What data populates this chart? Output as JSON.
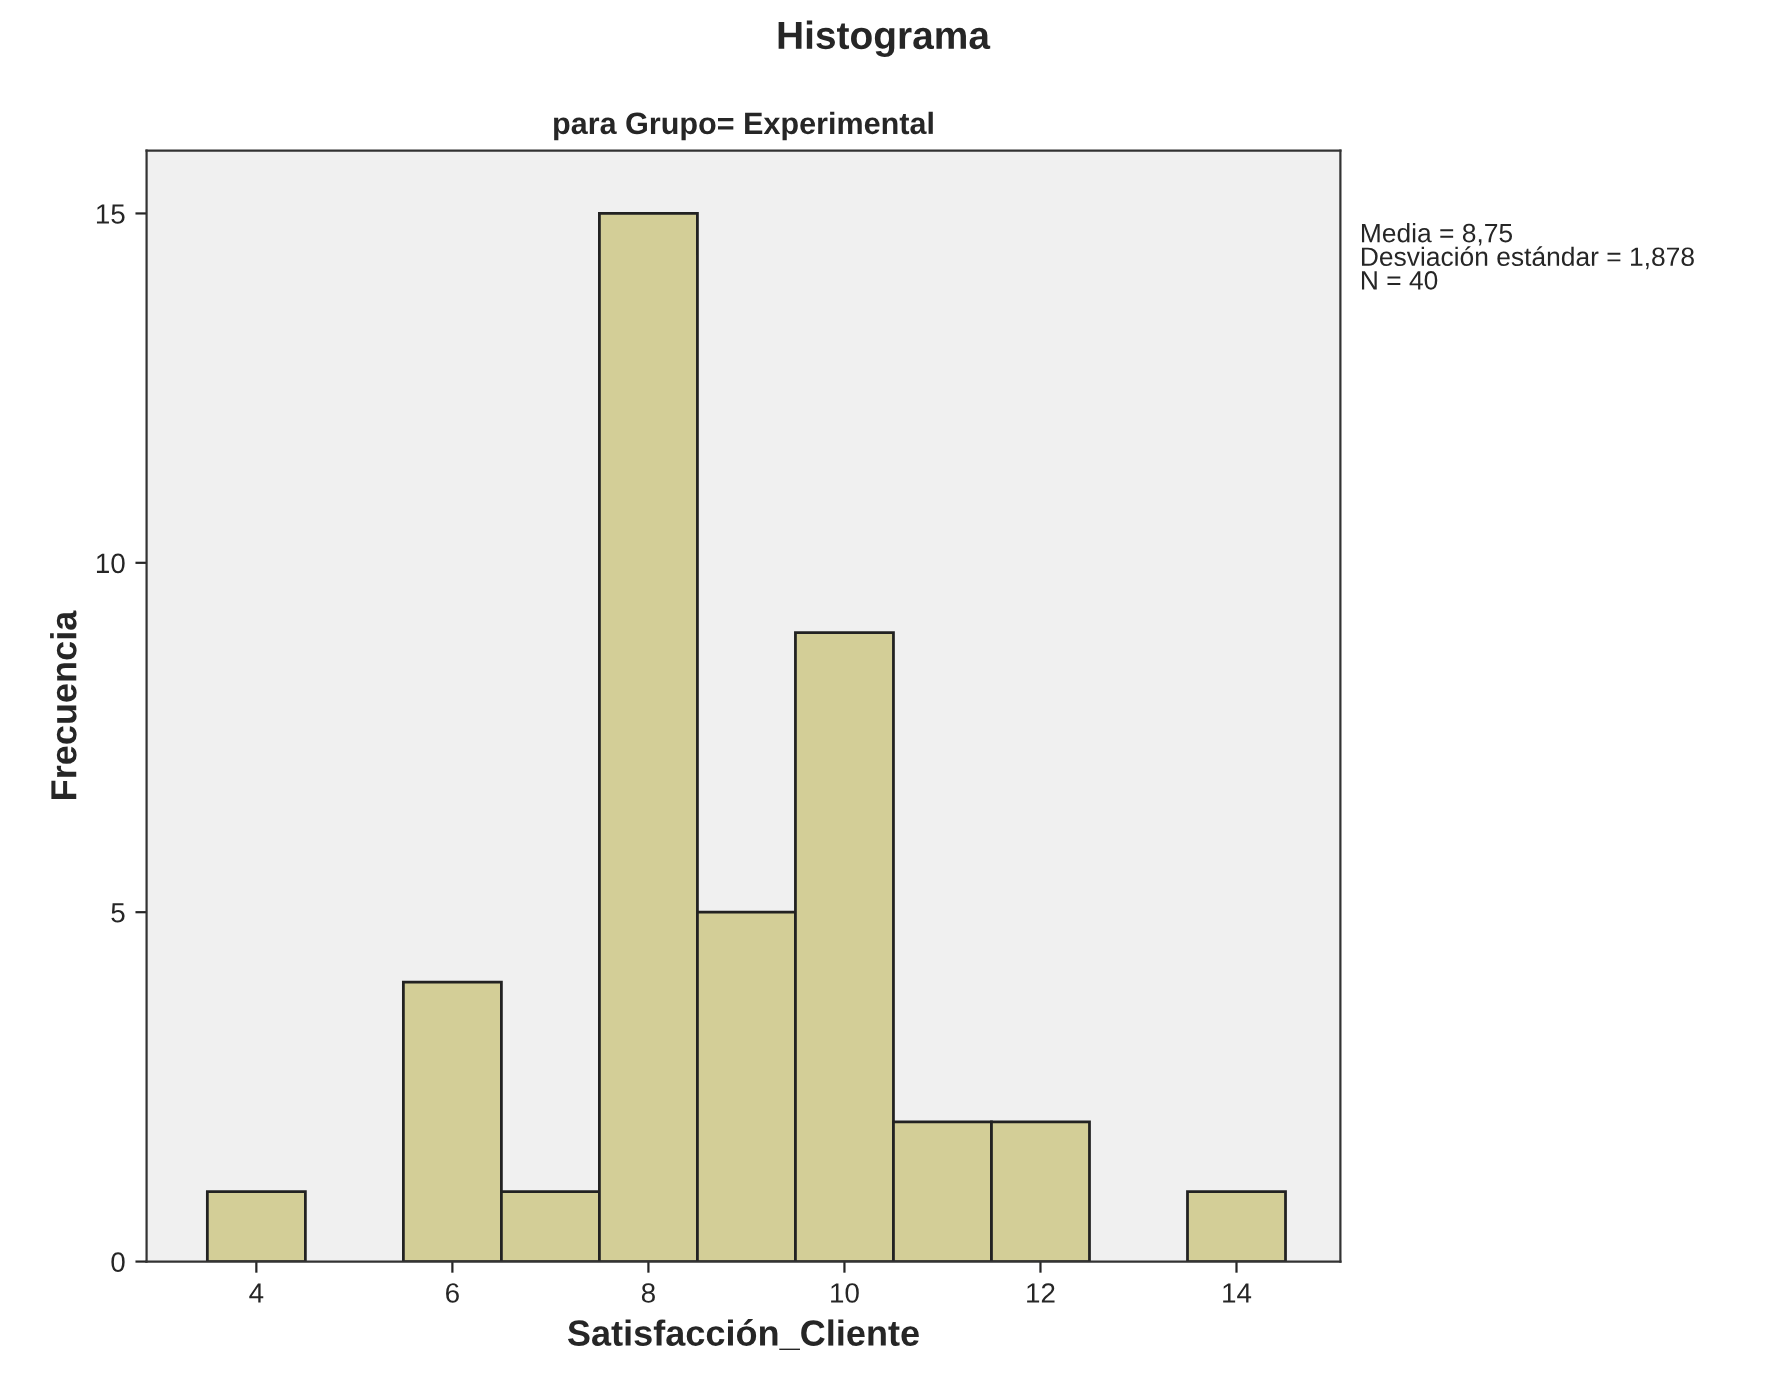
{
  "chart_data": {
    "type": "histogram",
    "title": "Histograma",
    "subtitle": "para Grupo= Experimental",
    "xlabel": "Satisfacción_Cliente",
    "ylabel": "Frecuencia",
    "bins": [
      3.5,
      4.5,
      5.5,
      6.5,
      7.5,
      8.5,
      9.5,
      10.5,
      11.5,
      12.5,
      13.5,
      14.5
    ],
    "values": [
      1,
      0,
      4,
      1,
      15,
      5,
      9,
      2,
      2,
      0,
      1
    ],
    "color": "#d3ce97",
    "xlim": [
      2.88,
      15.06
    ],
    "xticks": [
      4,
      6,
      8,
      10,
      12,
      14
    ],
    "ylim": [
      0,
      15.9
    ],
    "yticks": [
      0,
      5,
      10,
      15
    ],
    "grid": false,
    "annotations": [
      "Media = 8,75\nDesviación estándar = 1,878\nN = 40"
    ]
  }
}
